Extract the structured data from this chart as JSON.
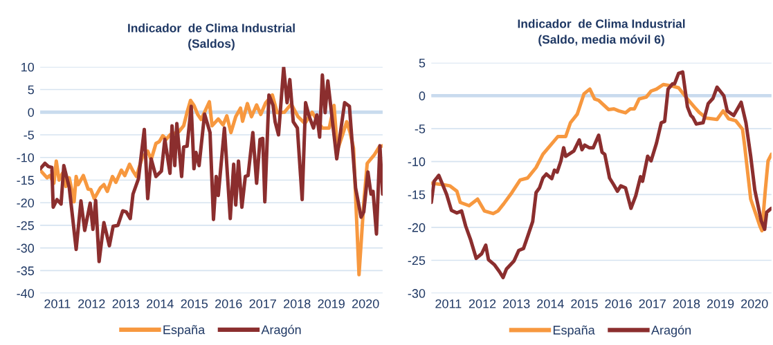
{
  "chart_data": [
    {
      "type": "line",
      "title": "Indicador  de Clima Industrial\n(Saldos)",
      "xlim": [
        2011,
        2021
      ],
      "ylim": [
        -40,
        10
      ],
      "yticks": [
        -40,
        -35,
        -30,
        -25,
        -20,
        -15,
        -10,
        -5,
        0,
        5,
        10
      ],
      "xticks": [
        {
          "value": 2011.5,
          "label": "2011"
        },
        {
          "value": 2012.5,
          "label": "2012"
        },
        {
          "value": 2013.5,
          "label": "2013"
        },
        {
          "value": 2014.5,
          "label": "2014"
        },
        {
          "value": 2015.5,
          "label": "2015"
        },
        {
          "value": 2016.5,
          "label": "2016"
        },
        {
          "value": 2017.5,
          "label": "2017"
        },
        {
          "value": 2018.5,
          "label": "2018"
        },
        {
          "value": 2019.5,
          "label": "2019"
        },
        {
          "value": 2020.5,
          "label": "2020"
        }
      ],
      "grid": "y",
      "legend": "bottom",
      "marker": "none",
      "line_style": "solid",
      "ref_lines": [
        {
          "axis": "y",
          "value": 0,
          "color": "#c9dbee"
        }
      ],
      "series": [
        {
          "name": "España",
          "color": "#f7983f",
          "x": [
            2011.0,
            2011.2,
            2011.28,
            2011.4,
            2011.47,
            2011.55,
            2011.65,
            2011.75,
            2011.85,
            2011.99,
            2012.05,
            2012.11,
            2012.26,
            2012.4,
            2012.48,
            2012.58,
            2012.76,
            2012.86,
            2012.96,
            2013.11,
            2013.21,
            2013.37,
            2013.47,
            2013.61,
            2013.71,
            2013.81,
            2013.98,
            2014.14,
            2014.24,
            2014.38,
            2014.48,
            2014.58,
            2014.68,
            2014.79,
            2015.05,
            2015.19,
            2015.29,
            2015.39,
            2015.49,
            2015.6,
            2015.7,
            2015.94,
            2016.02,
            2016.2,
            2016.34,
            2016.45,
            2016.57,
            2016.71,
            2016.85,
            2016.91,
            2017.05,
            2017.17,
            2017.32,
            2017.44,
            2017.58,
            2017.78,
            2017.92,
            2018.13,
            2018.33,
            2018.53,
            2018.73,
            2018.94,
            2019.1,
            2019.24,
            2019.44,
            2019.58,
            2019.68,
            2019.83,
            2019.95,
            2020.05,
            2020.15,
            2020.31,
            2020.45,
            2020.55,
            2020.75,
            2020.9,
            2021.0
          ],
          "values": [
            -12.8,
            -14.5,
            -14.0,
            -15.7,
            -10.8,
            -15.0,
            -13.5,
            -16.4,
            -14.5,
            -19.8,
            -14.2,
            -16.0,
            -14.0,
            -17.0,
            -17.1,
            -19.1,
            -16.7,
            -16.0,
            -17.5,
            -14.2,
            -15.5,
            -12.8,
            -14.0,
            -11.5,
            -13.0,
            -14.2,
            -10.0,
            -8.6,
            -10.5,
            -6.9,
            -6.5,
            -5.2,
            -6.0,
            -5.0,
            -4.3,
            -3.0,
            0.0,
            2.6,
            1.5,
            -0.5,
            -1.6,
            2.3,
            -3.0,
            -1.5,
            -2.8,
            -0.8,
            -4.5,
            -1.0,
            0.9,
            -2.0,
            1.9,
            -1.0,
            1.6,
            -0.5,
            2.0,
            3.8,
            -0.1,
            0.0,
            1.8,
            -1.0,
            -2.5,
            0.0,
            -2.0,
            -3.5,
            -3.5,
            1.5,
            -8.4,
            -5.0,
            -2.1,
            -4.5,
            -8.0,
            -35.9,
            -20.0,
            -11.3,
            -9.5,
            -7.7,
            -7.4
          ]
        },
        {
          "name": "Aragón",
          "color": "#8b2e2e",
          "x": [
            2011.0,
            2011.14,
            2011.24,
            2011.34,
            2011.38,
            2011.49,
            2011.61,
            2011.69,
            2011.85,
            2012.05,
            2012.19,
            2012.3,
            2012.46,
            2012.54,
            2012.62,
            2012.72,
            2012.86,
            2013.02,
            2013.13,
            2013.27,
            2013.41,
            2013.51,
            2013.63,
            2013.71,
            2013.87,
            2014.04,
            2014.14,
            2014.24,
            2014.38,
            2014.54,
            2014.64,
            2014.79,
            2014.85,
            2014.93,
            2014.99,
            2015.13,
            2015.19,
            2015.29,
            2015.41,
            2015.49,
            2015.55,
            2015.64,
            2015.8,
            2015.96,
            2016.06,
            2016.14,
            2016.2,
            2016.38,
            2016.55,
            2016.65,
            2016.71,
            2016.79,
            2016.89,
            2016.99,
            2017.07,
            2017.21,
            2017.32,
            2017.42,
            2017.5,
            2017.56,
            2017.68,
            2017.8,
            2017.86,
            2017.96,
            2018.11,
            2018.21,
            2018.29,
            2018.39,
            2018.51,
            2018.65,
            2018.75,
            2018.85,
            2018.98,
            2019.08,
            2019.16,
            2019.24,
            2019.32,
            2019.4,
            2019.66,
            2019.89,
            2020.03,
            2020.21,
            2020.37,
            2020.45,
            2020.57,
            2020.66,
            2020.72,
            2020.82,
            2020.92,
            2021.0
          ],
          "values": [
            -12.5,
            -11.3,
            -12.0,
            -12.2,
            -21.0,
            -19.3,
            -20.3,
            -11.8,
            -16.7,
            -30.3,
            -19.6,
            -26.1,
            -20.1,
            -25.9,
            -19.5,
            -33.0,
            -24.4,
            -29.5,
            -25.2,
            -25.0,
            -21.8,
            -22.0,
            -23.5,
            -18.1,
            -14.7,
            -3.8,
            -19.1,
            -10.3,
            -14.2,
            -13.0,
            -6.0,
            -13.5,
            -3.0,
            -11.8,
            -2.5,
            -14.2,
            -7.7,
            -7.5,
            1.3,
            -12.5,
            -8.9,
            -11.8,
            -0.4,
            -4.5,
            -23.7,
            -14.2,
            -18.4,
            -3.5,
            -23.5,
            -11.5,
            -20.5,
            -10.8,
            -21.0,
            -14.2,
            -14.0,
            -4.5,
            -15.7,
            -6.0,
            -5.8,
            -19.8,
            3.8,
            1.5,
            -2.1,
            -5.0,
            9.9,
            2.1,
            7.2,
            -2.1,
            -3.5,
            -19.3,
            2.1,
            -0.8,
            -3.5,
            -0.6,
            -5.5,
            8.2,
            -0.1,
            6.9,
            -10.3,
            2.1,
            1.3,
            -16.7,
            -23.2,
            -22.0,
            -13.2,
            -18.1,
            -17.5,
            -26.9,
            -7.4,
            -18.1
          ]
        }
      ]
    },
    {
      "type": "line",
      "title": "Indicador  de Clima Industrial\n(Saldo, media móvil 6)",
      "xlim": [
        2011,
        2021
      ],
      "ylim": [
        -30,
        5
      ],
      "yticks": [
        -30,
        -25,
        -20,
        -15,
        -10,
        -5,
        0,
        5
      ],
      "xticks": [
        {
          "value": 2011.5,
          "label": "2011"
        },
        {
          "value": 2012.5,
          "label": "2012"
        },
        {
          "value": 2013.5,
          "label": "2013"
        },
        {
          "value": 2014.5,
          "label": "2014"
        },
        {
          "value": 2015.5,
          "label": "2015"
        },
        {
          "value": 2016.5,
          "label": "2016"
        },
        {
          "value": 2017.5,
          "label": "2017"
        },
        {
          "value": 2018.5,
          "label": "2018"
        },
        {
          "value": 2019.5,
          "label": "2019"
        },
        {
          "value": 2020.5,
          "label": "2020"
        }
      ],
      "grid": "y",
      "legend": "bottom",
      "marker": "none",
      "line_style": "solid",
      "ref_lines": [
        {
          "axis": "y",
          "value": 0,
          "color": "#c9dbee"
        }
      ],
      "series": [
        {
          "name": "España",
          "color": "#f7983f",
          "x": [
            2011.0,
            2011.34,
            2011.55,
            2011.75,
            2011.85,
            2012.11,
            2012.36,
            2012.56,
            2012.82,
            2012.96,
            2013.13,
            2013.37,
            2013.61,
            2013.83,
            2014.08,
            2014.28,
            2014.72,
            2014.95,
            2015.09,
            2015.29,
            2015.49,
            2015.66,
            2015.8,
            2015.92,
            2016.21,
            2016.37,
            2016.51,
            2016.71,
            2016.85,
            2016.97,
            2017.11,
            2017.32,
            2017.46,
            2017.62,
            2017.82,
            2018.06,
            2018.27,
            2018.53,
            2018.73,
            2018.87,
            2019.08,
            2019.24,
            2019.4,
            2019.58,
            2019.74,
            2019.95,
            2020.15,
            2020.21,
            2020.39,
            2020.55,
            2020.66,
            2020.72,
            2020.82,
            2020.9,
            2021.0
          ],
          "values": [
            -13.3,
            -13.5,
            -13.7,
            -14.5,
            -16.2,
            -16.7,
            -15.7,
            -17.5,
            -17.9,
            -17.5,
            -16.4,
            -14.7,
            -12.8,
            -12.5,
            -10.9,
            -8.9,
            -6.2,
            -6.2,
            -4.1,
            -2.8,
            0.3,
            1.0,
            -0.5,
            -0.7,
            -2.1,
            -2.0,
            -2.3,
            -2.6,
            -2.0,
            -2.0,
            -0.5,
            -0.2,
            0.7,
            1.0,
            1.7,
            1.5,
            1.2,
            -0.5,
            -1.7,
            -2.5,
            -3.4,
            -3.5,
            -3.6,
            -2.3,
            -3.5,
            -3.8,
            -5.1,
            -7.5,
            -15.7,
            -18.1,
            -19.8,
            -20.5,
            -14.3,
            -9.9,
            -8.9
          ]
        },
        {
          "name": "Aragón",
          "color": "#8b2e2e",
          "x": [
            2011.0,
            2011.08,
            2011.22,
            2011.45,
            2011.59,
            2011.75,
            2011.89,
            2012.01,
            2012.15,
            2012.32,
            2012.48,
            2012.6,
            2012.68,
            2012.86,
            2013.0,
            2013.11,
            2013.21,
            2013.43,
            2013.57,
            2013.71,
            2013.85,
            2013.98,
            2014.08,
            2014.18,
            2014.28,
            2014.38,
            2014.54,
            2014.62,
            2014.7,
            2014.81,
            2014.89,
            2014.95,
            2015.19,
            2015.35,
            2015.43,
            2015.51,
            2015.64,
            2015.76,
            2015.92,
            2016.02,
            2016.1,
            2016.24,
            2016.36,
            2016.47,
            2016.57,
            2016.71,
            2016.87,
            2017.01,
            2017.15,
            2017.21,
            2017.36,
            2017.46,
            2017.62,
            2017.76,
            2017.86,
            2017.96,
            2018.09,
            2018.15,
            2018.27,
            2018.39,
            2018.53,
            2018.63,
            2018.69,
            2018.79,
            2018.99,
            2019.14,
            2019.28,
            2019.4,
            2019.6,
            2019.7,
            2019.89,
            2020.11,
            2020.25,
            2020.39,
            2020.51,
            2020.7,
            2020.8,
            2020.86,
            2021.0
          ],
          "values": [
            -16.2,
            -13.0,
            -12.1,
            -15.0,
            -17.4,
            -17.8,
            -17.5,
            -19.8,
            -21.8,
            -24.7,
            -24.0,
            -22.7,
            -24.9,
            -25.7,
            -26.7,
            -27.6,
            -26.3,
            -25.1,
            -23.5,
            -23.2,
            -21.1,
            -19.1,
            -14.7,
            -14.0,
            -12.5,
            -11.9,
            -12.6,
            -11.3,
            -11.6,
            -9.9,
            -7.9,
            -9.2,
            -8.4,
            -6.7,
            -8.2,
            -7.5,
            -7.9,
            -7.9,
            -6.0,
            -8.6,
            -8.9,
            -12.5,
            -13.5,
            -14.5,
            -13.7,
            -14.0,
            -17.1,
            -15.2,
            -12.3,
            -13.0,
            -9.2,
            -9.9,
            -7.2,
            -4.1,
            -3.9,
            1.0,
            1.8,
            1.8,
            3.4,
            3.6,
            -1.7,
            -3.0,
            -3.3,
            -4.3,
            -4.1,
            -1.2,
            -0.4,
            1.3,
            0.0,
            -2.3,
            -3.0,
            -1.0,
            -4.1,
            -9.2,
            -14.3,
            -19.0,
            -20.3,
            -17.7,
            -17.1
          ]
        }
      ]
    }
  ]
}
